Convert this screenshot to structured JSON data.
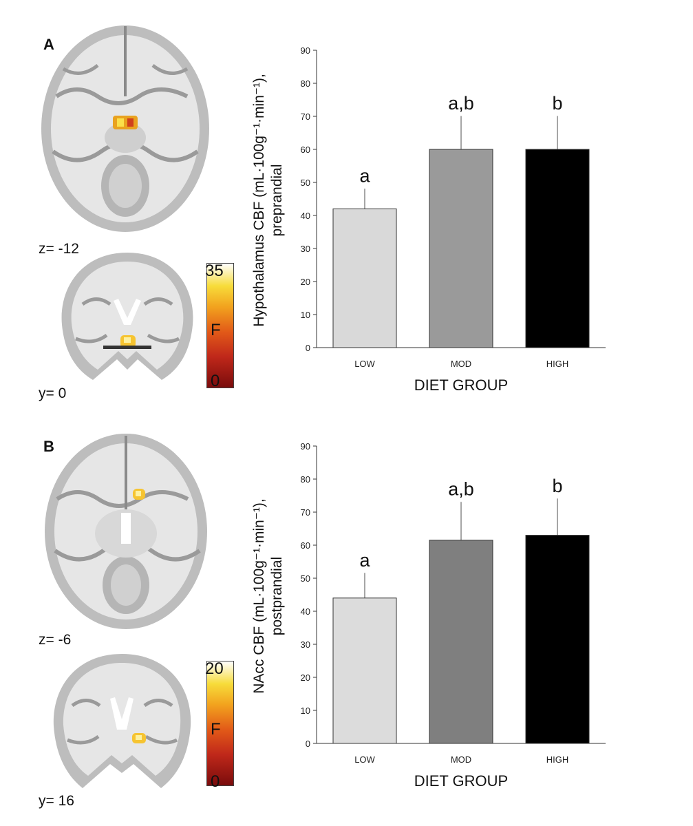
{
  "panels": [
    {
      "letter": "A",
      "slice_axial": "z= -12",
      "slice_coronal": "y= 0",
      "colorbar": {
        "max": "35",
        "mid": "F",
        "min": "0"
      },
      "ylabel_line1": "Hypothalamus CBF (mL·100g⁻¹·min⁻¹),",
      "ylabel_line2": "preprandial"
    },
    {
      "letter": "B",
      "slice_axial": "z= -6",
      "slice_coronal": "y= 16",
      "colorbar": {
        "max": "20",
        "mid": "F",
        "min": "0"
      },
      "ylabel_line1": "NAcc CBF (mL·100g⁻¹·min⁻¹),",
      "ylabel_line2": "postprandial"
    }
  ],
  "chart_data": [
    {
      "type": "bar",
      "categories": [
        "LOW",
        "MOD",
        "HIGH"
      ],
      "values": [
        42,
        60,
        60
      ],
      "errors": [
        6,
        10,
        10
      ],
      "annotations": [
        "a",
        "a,b",
        "b"
      ],
      "bar_colors": [
        "#d9d9d9",
        "#9a9a9a",
        "#000000"
      ],
      "xlabel": "DIET GROUP",
      "ylabel": "Hypothalamus CBF (mL·100g⁻¹·min⁻¹), preprandial",
      "ylim": [
        0,
        90
      ],
      "yticks": [
        0,
        10,
        20,
        30,
        40,
        50,
        60,
        70,
        80,
        90
      ],
      "grid": false
    },
    {
      "type": "bar",
      "categories": [
        "LOW",
        "MOD",
        "HIGH"
      ],
      "values": [
        44,
        61.5,
        63
      ],
      "errors": [
        7.5,
        11.5,
        11
      ],
      "annotations": [
        "a",
        "a,b",
        "b"
      ],
      "bar_colors": [
        "#dcdcdc",
        "#7f7f7f",
        "#000000"
      ],
      "xlabel": "DIET GROUP",
      "ylabel": "NAcc CBF (mL·100g⁻¹·min⁻¹), postprandial",
      "ylim": [
        0,
        90
      ],
      "yticks": [
        0,
        10,
        20,
        30,
        40,
        50,
        60,
        70,
        80,
        90
      ],
      "grid": false
    }
  ]
}
